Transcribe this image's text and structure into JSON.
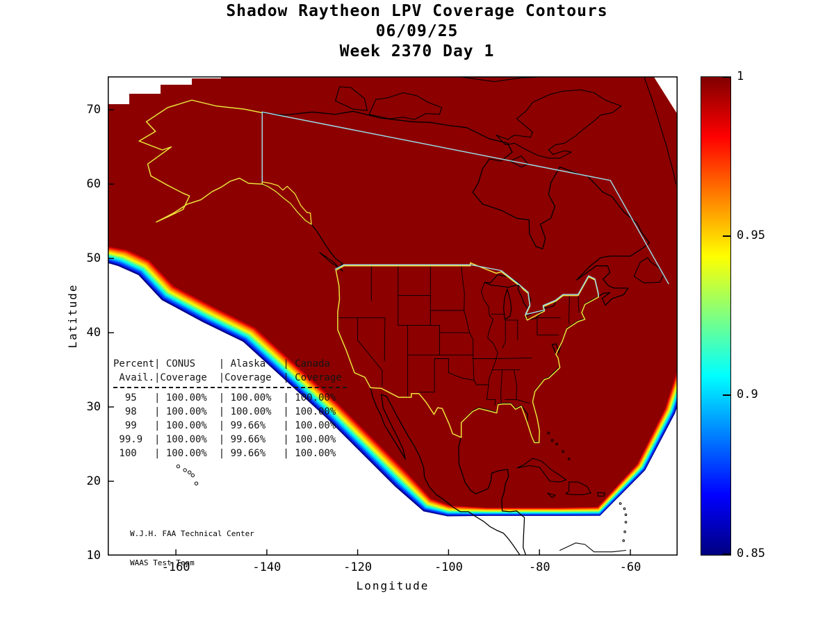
{
  "title": {
    "line1": "Shadow Raytheon LPV Coverage Contours",
    "line2": "06/09/25",
    "line3": "Week 2370 Day 1"
  },
  "axes": {
    "xlabel": "Longitude",
    "ylabel": "Latitude",
    "x_ticks": [
      -160,
      -140,
      -120,
      -100,
      -80,
      -60
    ],
    "y_ticks": [
      10,
      20,
      30,
      40,
      50,
      60,
      70
    ]
  },
  "colorbar": {
    "min": 0.85,
    "max": 1,
    "colormap": "jet",
    "ticks": [
      {
        "label": "1",
        "value": 1
      },
      {
        "label": "0.95",
        "value": 0.95
      },
      {
        "label": "0.9",
        "value": 0.9
      },
      {
        "label": "0.85",
        "value": 0.85
      }
    ]
  },
  "coverage_table": {
    "lines": [
      "Percent| CONUS    | Alaska   | Canada",
      " Avail.|Coverage  |Coverage  | Coverage",
      "  95   | 100.00%  | 100.00%  | 100.00%",
      "  98   | 100.00%  | 100.00%  | 100.00%",
      "  99   | 100.00%  | 99.66%   | 100.00%",
      " 99.9  | 100.00%  | 99.66%   | 100.00%",
      " 100   | 100.00%  | 99.66%   | 100.00%"
    ]
  },
  "credit": {
    "line1": "W.J.H. FAA Technical Center",
    "line2": "WAAS Test Team"
  },
  "map_colors": {
    "coverage_full": "#8c0000",
    "state_outline_yellow": "#f2e33a",
    "border_cyan": "#9bd9e4",
    "coastline": "#000000"
  },
  "chart_data": {
    "type": "heatmap",
    "title": "Shadow Raytheon LPV Coverage Contours",
    "subtitle": "06/09/25",
    "caption": "Week 2370 Day 1",
    "xlabel": "Longitude",
    "ylabel": "Latitude",
    "xlim": [
      -175,
      -50
    ],
    "ylim": [
      10,
      75
    ],
    "x_ticks": [
      -160,
      -140,
      -120,
      -100,
      -80,
      -60
    ],
    "y_ticks": [
      10,
      20,
      30,
      40,
      50,
      60,
      70
    ],
    "colorbar": {
      "min": 0.85,
      "max": 1,
      "tick_labels": [
        1,
        0.95,
        0.9,
        0.85
      ],
      "colormap": "jet",
      "position": "right-vertical"
    },
    "contour_levels": [
      0.85,
      0.9,
      0.95,
      1.0
    ],
    "description": "LPV coverage availability contours over North America. Coverage value 1.0 (dark red) fills CONUS, Alaska and Canada; values fall through the jet colormap to 0.85 (blue) along the southwestern Pacific edge and southern edge of the WAAS service volume.",
    "availability_table": {
      "columns": [
        "Percent Avail.",
        "CONUS Coverage",
        "Alaska Coverage",
        "Canada Coverage"
      ],
      "rows": [
        [
          "95",
          "100.00%",
          "100.00%",
          "100.00%"
        ],
        [
          "98",
          "100.00%",
          "100.00%",
          "100.00%"
        ],
        [
          "99",
          "100.00%",
          "99.66%",
          "100.00%"
        ],
        [
          "99.9",
          "100.00%",
          "99.66%",
          "100.00%"
        ],
        [
          "100",
          "100.00%",
          "99.66%",
          "100.00%"
        ]
      ]
    }
  }
}
